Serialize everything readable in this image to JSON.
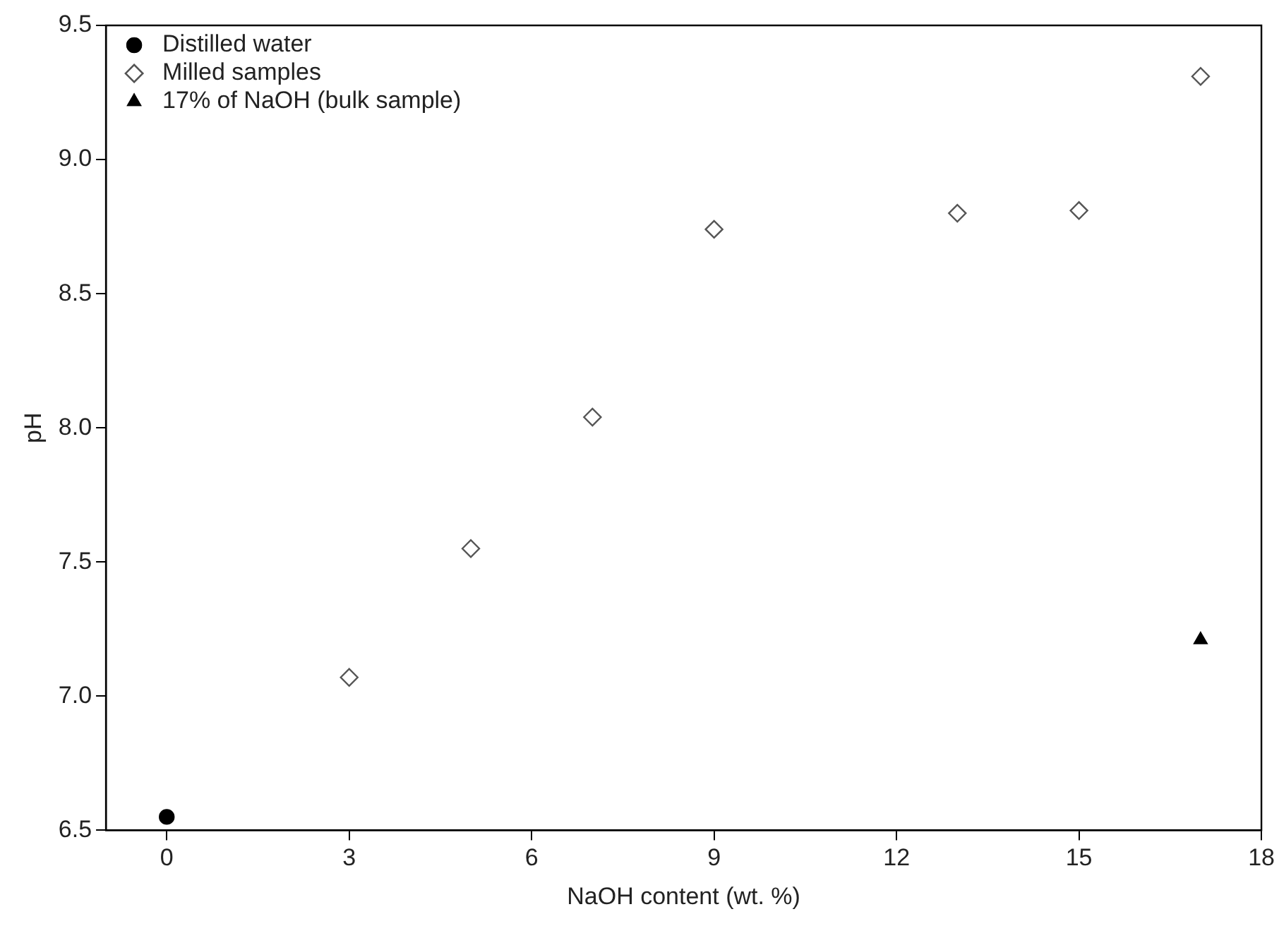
{
  "chart_data": {
    "type": "scatter",
    "xlabel": "NaOH content (wt. %)",
    "ylabel": "pH",
    "xlim": [
      -1,
      18
    ],
    "xticks": [
      0,
      3,
      6,
      9,
      12,
      15,
      18
    ],
    "ylim": [
      6.5,
      9.5
    ],
    "yticks": [
      {
        "value": 6.5,
        "label": "6.5"
      },
      {
        "value": 7,
        "label": "7.0"
      },
      {
        "value": 7.5,
        "label": "7.5"
      },
      {
        "value": 8,
        "label": "8.0"
      },
      {
        "value": 8.5,
        "label": "8.5"
      },
      {
        "value": 9,
        "label": "9.0"
      },
      {
        "value": 9.5,
        "label": "9.5"
      }
    ],
    "grid": false,
    "legend": "top left",
    "series": [
      {
        "name": "Distilled water",
        "color": "#000000",
        "marker": "circle",
        "x": [
          0
        ],
        "values": [
          6.55
        ]
      },
      {
        "name": "Milled samples",
        "color": "#555555",
        "marker": "diamond",
        "x": [
          3,
          5,
          7,
          9,
          13,
          15,
          17
        ],
        "values": [
          7.07,
          7.55,
          8.04,
          8.74,
          8.8,
          8.81,
          9.31
        ]
      },
      {
        "name": "17% of NaOH (bulk sample)",
        "color": "#000000",
        "marker": "triangle",
        "x": [
          17
        ],
        "values": [
          7.21
        ]
      }
    ]
  }
}
